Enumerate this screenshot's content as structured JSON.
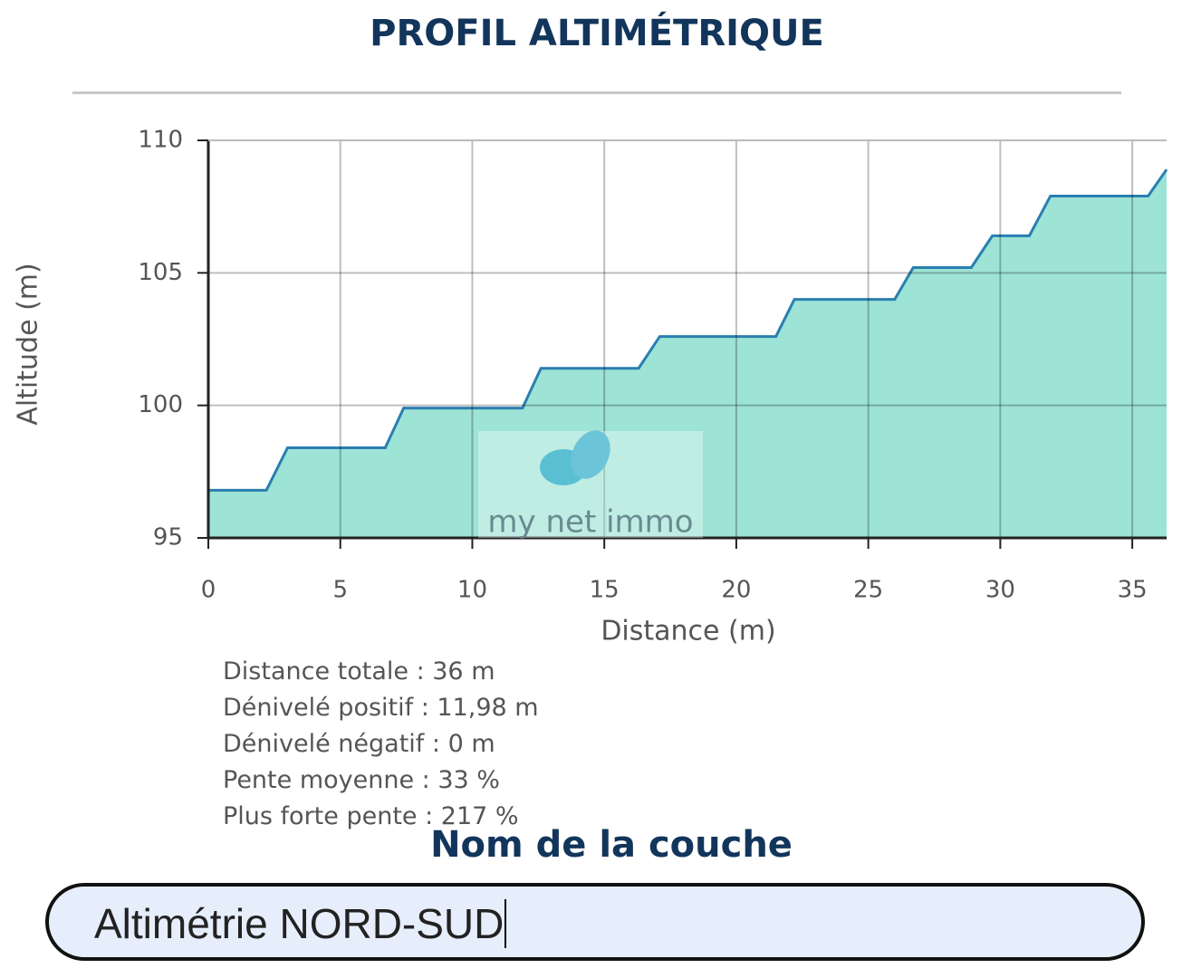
{
  "title": "PROFIL ALTIMÉTRIQUE",
  "chart_data": {
    "type": "area",
    "x_label": "Distance (m)",
    "y_label": "Altitude (m)",
    "x": [
      0,
      2.2,
      3.0,
      6.7,
      7.4,
      11.9,
      12.6,
      16.3,
      17.1,
      21.5,
      22.2,
      26.0,
      26.7,
      28.9,
      29.7,
      31.1,
      31.9,
      35.6,
      36.3
    ],
    "values": [
      96.8,
      96.8,
      98.4,
      98.4,
      99.9,
      99.9,
      101.4,
      101.4,
      102.6,
      102.6,
      104.0,
      104.0,
      105.2,
      105.2,
      106.4,
      106.4,
      107.9,
      107.9,
      108.9
    ],
    "color": "#2a7fb0",
    "fill_color": "#9de3d6",
    "xlim": [
      0,
      36.3
    ],
    "ylim": [
      95,
      110
    ],
    "xticks": [
      0,
      5,
      10,
      15,
      20,
      25,
      30,
      35
    ],
    "yticks": [
      95,
      100,
      105,
      110
    ],
    "grid": true
  },
  "watermark": "my net immo",
  "stats": [
    "Distance totale : 36 m",
    "Dénivelé positif : 11,98 m",
    "Dénivelé négatif : 0 m",
    "Pente moyenne : 33 %",
    "Plus forte pente : 217 %"
  ],
  "layer_field": {
    "label": "Nom de la couche",
    "value": "Altimétrie NORD-SUD"
  }
}
